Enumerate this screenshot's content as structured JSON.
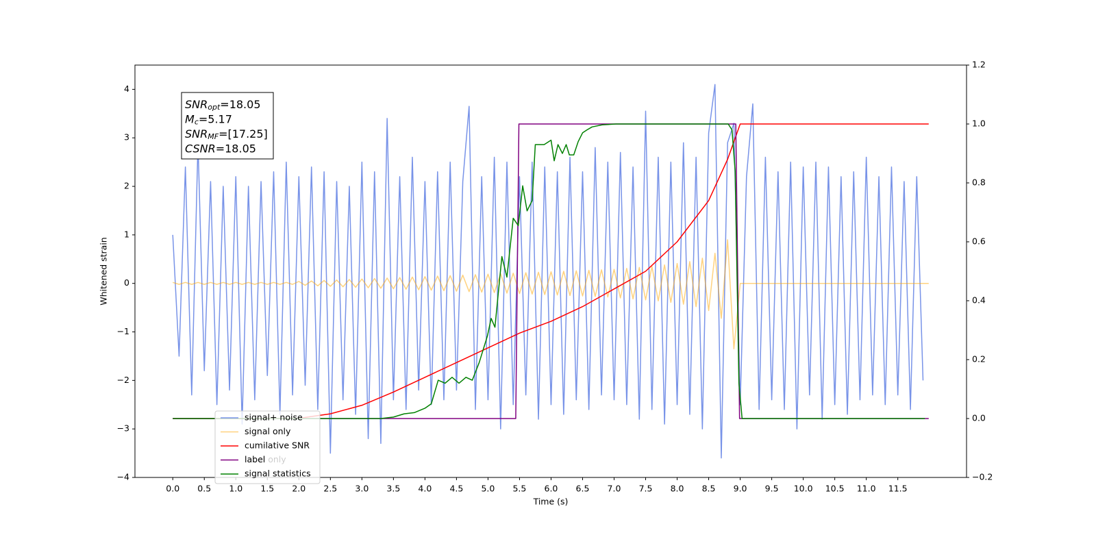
{
  "chart_data": {
    "type": "line",
    "xlabel": "Time (s)",
    "ylabel": "Whitened strain",
    "xlim": [
      -0.6,
      12.59
    ],
    "ylim": [
      -4,
      4.5
    ],
    "y2lim": [
      -0.2,
      1.2
    ],
    "xticks": [
      {
        "value": 0,
        "label": "0.0"
      },
      0.5,
      {
        "value": 1,
        "label": "1.0"
      },
      1.5,
      {
        "value": 2,
        "label": "2.0"
      },
      2.5,
      {
        "value": 3,
        "label": "3.0"
      },
      3.5,
      {
        "value": 4,
        "label": "4.0"
      },
      4.5,
      {
        "value": 5,
        "label": "5.0"
      },
      5.5,
      {
        "value": 6,
        "label": "6.0"
      },
      6.5,
      {
        "value": 7,
        "label": "7.0"
      },
      7.5,
      {
        "value": 8,
        "label": "8.0"
      },
      8.5,
      {
        "value": 9,
        "label": "9.0"
      },
      9.5,
      {
        "value": 10,
        "label": "10.0"
      },
      10.5,
      {
        "value": 11,
        "label": "11.0"
      },
      11.5
    ],
    "yticks": [
      {
        "value": -4,
        "label": "−4"
      },
      {
        "value": -3,
        "label": "−3"
      },
      {
        "value": -2,
        "label": "−2"
      },
      {
        "value": -1,
        "label": "−1"
      },
      0,
      1,
      2,
      3,
      4
    ],
    "y2ticks": [
      {
        "value": -0.2,
        "label": "−0.2"
      },
      {
        "value": 0,
        "label": "0.0"
      },
      0.2,
      0.4,
      0.6,
      0.8,
      {
        "value": 1,
        "label": "1.0"
      },
      1.2
    ],
    "grid": false,
    "legend": "lower left",
    "legend_underlay": "label only",
    "annotation": [
      {
        "main": "SNR",
        "sub": "opt",
        "text": "=18.05"
      },
      {
        "main": "M",
        "sub": "c",
        "text": "=5.17"
      },
      {
        "main": "SNR",
        "sub": "MF",
        "text": "=[17.25]"
      },
      {
        "main": "CSNR",
        "text": "=18.05"
      }
    ],
    "series": [
      {
        "name": "signal+ noise",
        "color": "#7893e8",
        "opacity": 1,
        "x": [
          0.0,
          0.1,
          0.2,
          0.3,
          0.4,
          0.5,
          0.6,
          0.7,
          0.8,
          0.9,
          1.0,
          1.1,
          1.2,
          1.3,
          1.4,
          1.5,
          1.6,
          1.7,
          1.8,
          1.9,
          2.0,
          2.1,
          2.2,
          2.3,
          2.4,
          2.5,
          2.6,
          2.7,
          2.8,
          2.9,
          3.0,
          3.1,
          3.2,
          3.3,
          3.4,
          3.5,
          3.6,
          3.7,
          3.8,
          3.9,
          4.0,
          4.1,
          4.2,
          4.3,
          4.4,
          4.5,
          4.6,
          4.7,
          4.8,
          4.9,
          5.0,
          5.1,
          5.2,
          5.3,
          5.4,
          5.5,
          5.6,
          5.7,
          5.8,
          5.9,
          6.0,
          6.1,
          6.2,
          6.3,
          6.4,
          6.5,
          6.6,
          6.7,
          6.8,
          6.9,
          7.0,
          7.1,
          7.2,
          7.3,
          7.4,
          7.5,
          7.6,
          7.7,
          7.8,
          7.9,
          8.0,
          8.1,
          8.2,
          8.3,
          8.4,
          8.5,
          8.6,
          8.7,
          8.8,
          8.9,
          9.0,
          9.1,
          9.2,
          9.3,
          9.4,
          9.5,
          9.6,
          9.7,
          9.8,
          9.9,
          10.0,
          10.1,
          10.2,
          10.3,
          10.4,
          10.5,
          10.6,
          10.7,
          10.8,
          10.9,
          11.0,
          11.1,
          11.2,
          11.3,
          11.4,
          11.5,
          11.6,
          11.7,
          11.8,
          11.9
        ],
        "values": [
          1.0,
          -1.5,
          2.4,
          -2.3,
          2.9,
          -1.8,
          2.1,
          -2.5,
          2.0,
          -2.2,
          2.2,
          -2.9,
          2.0,
          -2.4,
          2.1,
          -1.9,
          2.3,
          -2.7,
          2.5,
          -2.3,
          2.2,
          -2.1,
          2.4,
          -2.6,
          2.3,
          -3.5,
          2.1,
          -2.4,
          2.0,
          -2.7,
          2.5,
          -3.2,
          2.3,
          -3.3,
          3.4,
          -2.4,
          2.2,
          -2.6,
          2.6,
          -2.2,
          2.1,
          -2.5,
          2.3,
          -2.4,
          2.5,
          -2.2,
          2.1,
          3.65,
          -2.6,
          2.2,
          -2.4,
          2.6,
          -3.0,
          2.5,
          -2.5,
          2.2,
          -2.3,
          2.5,
          -2.8,
          2.4,
          -2.5,
          2.3,
          -2.7,
          2.6,
          -2.4,
          2.3,
          -2.6,
          2.8,
          -2.3,
          2.5,
          -2.4,
          2.7,
          -2.5,
          2.4,
          -2.8,
          3.55,
          -2.6,
          2.6,
          -2.9,
          2.5,
          -2.5,
          2.9,
          -2.7,
          2.6,
          -3.0,
          3.1,
          4.1,
          -3.6,
          2.9,
          3.3,
          -2.5,
          2.2,
          3.7,
          -2.6,
          2.6,
          -2.4,
          2.3,
          -2.6,
          2.5,
          -3.0,
          2.4,
          -2.3,
          2.5,
          -2.8,
          2.4,
          -2.5,
          2.2,
          -2.7,
          2.3,
          -2.4,
          2.6,
          -2.3,
          2.2,
          -2.5,
          2.4,
          -2.3,
          2.1,
          -2.6,
          2.2,
          -2.0
        ]
      },
      {
        "name": "signal only",
        "color": "#ffa500",
        "opacity": 0.5,
        "x": [
          0.0,
          0.1,
          0.2,
          0.3,
          0.4,
          0.5,
          0.6,
          0.7,
          0.8,
          0.9,
          1.0,
          1.1,
          1.2,
          1.3,
          1.4,
          1.5,
          1.6,
          1.7,
          1.8,
          1.9,
          2.0,
          2.1,
          2.2,
          2.3,
          2.4,
          2.5,
          2.6,
          2.7,
          2.8,
          2.9,
          3.0,
          3.1,
          3.2,
          3.3,
          3.4,
          3.5,
          3.6,
          3.7,
          3.8,
          3.9,
          4.0,
          4.1,
          4.2,
          4.3,
          4.4,
          4.5,
          4.6,
          4.7,
          4.8,
          4.9,
          5.0,
          5.1,
          5.2,
          5.3,
          5.4,
          5.5,
          5.6,
          5.7,
          5.8,
          5.9,
          6.0,
          6.1,
          6.2,
          6.3,
          6.4,
          6.5,
          6.6,
          6.7,
          6.8,
          6.9,
          7.0,
          7.1,
          7.2,
          7.3,
          7.4,
          7.5,
          7.6,
          7.7,
          7.8,
          7.9,
          8.0,
          8.1,
          8.2,
          8.3,
          8.4,
          8.5,
          8.6,
          8.7,
          8.8,
          8.9,
          9.0,
          11.99
        ],
        "values": [
          0.02,
          -0.02,
          0.02,
          -0.02,
          0.02,
          -0.02,
          0.02,
          -0.02,
          0.02,
          -0.02,
          0.02,
          -0.02,
          0.02,
          -0.02,
          0.02,
          -0.02,
          0.02,
          -0.02,
          0.02,
          -0.02,
          0.04,
          -0.04,
          0.05,
          -0.05,
          0.06,
          -0.06,
          0.07,
          -0.07,
          0.08,
          -0.08,
          0.09,
          -0.09,
          0.1,
          -0.1,
          0.11,
          -0.11,
          0.12,
          -0.12,
          0.13,
          -0.13,
          0.14,
          -0.14,
          0.15,
          -0.15,
          0.16,
          -0.16,
          0.17,
          -0.17,
          0.18,
          -0.18,
          0.19,
          -0.19,
          0.2,
          -0.2,
          0.21,
          -0.21,
          0.22,
          -0.22,
          0.23,
          -0.23,
          0.24,
          -0.24,
          0.25,
          -0.25,
          0.26,
          -0.26,
          0.27,
          -0.27,
          0.28,
          -0.28,
          0.29,
          -0.3,
          0.31,
          -0.32,
          0.33,
          -0.34,
          0.35,
          -0.36,
          0.38,
          -0.39,
          0.41,
          -0.43,
          0.45,
          -0.48,
          0.52,
          -0.56,
          0.62,
          -0.72,
          0.9,
          -1.35,
          0,
          0
        ]
      },
      {
        "name": "cumilative SNR",
        "color": "#ff0000",
        "opacity": 1,
        "axis": "y2",
        "x": [
          0,
          1,
          2,
          2.5,
          3,
          3.5,
          4,
          4.5,
          5,
          5.5,
          6,
          6.5,
          7,
          7.5,
          8,
          8.5,
          8.8,
          8.95,
          9.0,
          11.99
        ],
        "values": [
          0,
          0,
          0.001,
          0.016,
          0.045,
          0.09,
          0.14,
          0.19,
          0.24,
          0.29,
          0.33,
          0.38,
          0.44,
          0.5,
          0.6,
          0.74,
          0.88,
          0.97,
          1.0,
          1.0
        ]
      },
      {
        "name": "label",
        "color": "#800080",
        "opacity": 1,
        "axis": "y2",
        "x": [
          0,
          5.44,
          5.49,
          8.93,
          8.99,
          11.99
        ],
        "values": [
          0,
          0,
          1,
          1,
          0,
          0
        ]
      },
      {
        "name": "signal statistics",
        "color": "#008000",
        "opacity": 1,
        "axis": "y2",
        "x": [
          0,
          3.3,
          3.5,
          3.67,
          3.83,
          4.0,
          4.1,
          4.21,
          4.32,
          4.43,
          4.54,
          4.65,
          4.75,
          4.86,
          4.99,
          5.05,
          5.11,
          5.22,
          5.3,
          5.4,
          5.48,
          5.55,
          5.62,
          5.7,
          5.75,
          5.89,
          6.0,
          6.05,
          6.11,
          6.18,
          6.24,
          6.29,
          6.36,
          6.43,
          6.5,
          6.57,
          6.65,
          6.81,
          7.03,
          8.81,
          8.87,
          8.92,
          8.98,
          9.03,
          11.93
        ],
        "values": [
          0,
          0,
          0.005,
          0.016,
          0.02,
          0.035,
          0.05,
          0.13,
          0.12,
          0.14,
          0.12,
          0.14,
          0.13,
          0.19,
          0.28,
          0.34,
          0.31,
          0.55,
          0.48,
          0.68,
          0.655,
          0.79,
          0.705,
          0.74,
          0.93,
          0.93,
          0.945,
          0.875,
          0.93,
          0.9,
          0.93,
          0.895,
          0.895,
          0.94,
          0.97,
          0.98,
          0.99,
          0.997,
          1.0,
          1.0,
          0.98,
          0.84,
          0.12,
          0.0,
          0.0
        ]
      }
    ]
  }
}
